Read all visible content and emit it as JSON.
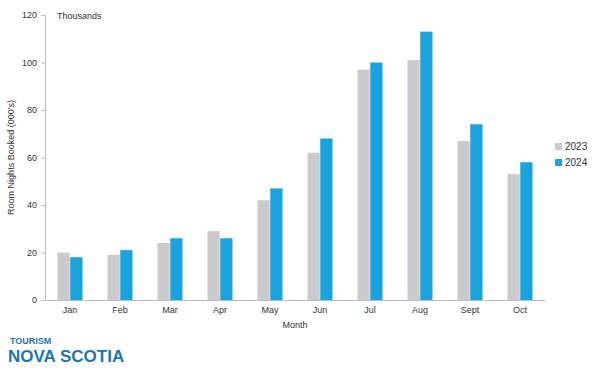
{
  "chart_data": {
    "type": "bar",
    "x_label": "Month",
    "y_label": "Room Nights Booked (000's)",
    "annotations": [
      "Thousands",
      "TOURISM",
      "NOVA SCOTIA"
    ],
    "categories": [
      "Jan",
      "Feb",
      "Mar",
      "Apr",
      "May",
      "Jun",
      "Jul",
      "Aug",
      "Sept",
      "Oct"
    ],
    "series": [
      {
        "name": "2023",
        "color": "#cbcbcf",
        "values": [
          20,
          19,
          24,
          29,
          42,
          62,
          97,
          101,
          67,
          53
        ]
      },
      {
        "name": "2024",
        "color": "#1ba3de",
        "values": [
          18,
          21,
          26,
          26,
          47,
          68,
          100,
          113,
          74,
          58
        ]
      }
    ],
    "ylim": [
      0,
      120
    ],
    "yticks": [
      0,
      20,
      40,
      60,
      80,
      100,
      120
    ],
    "grid": false,
    "legend": "right"
  }
}
